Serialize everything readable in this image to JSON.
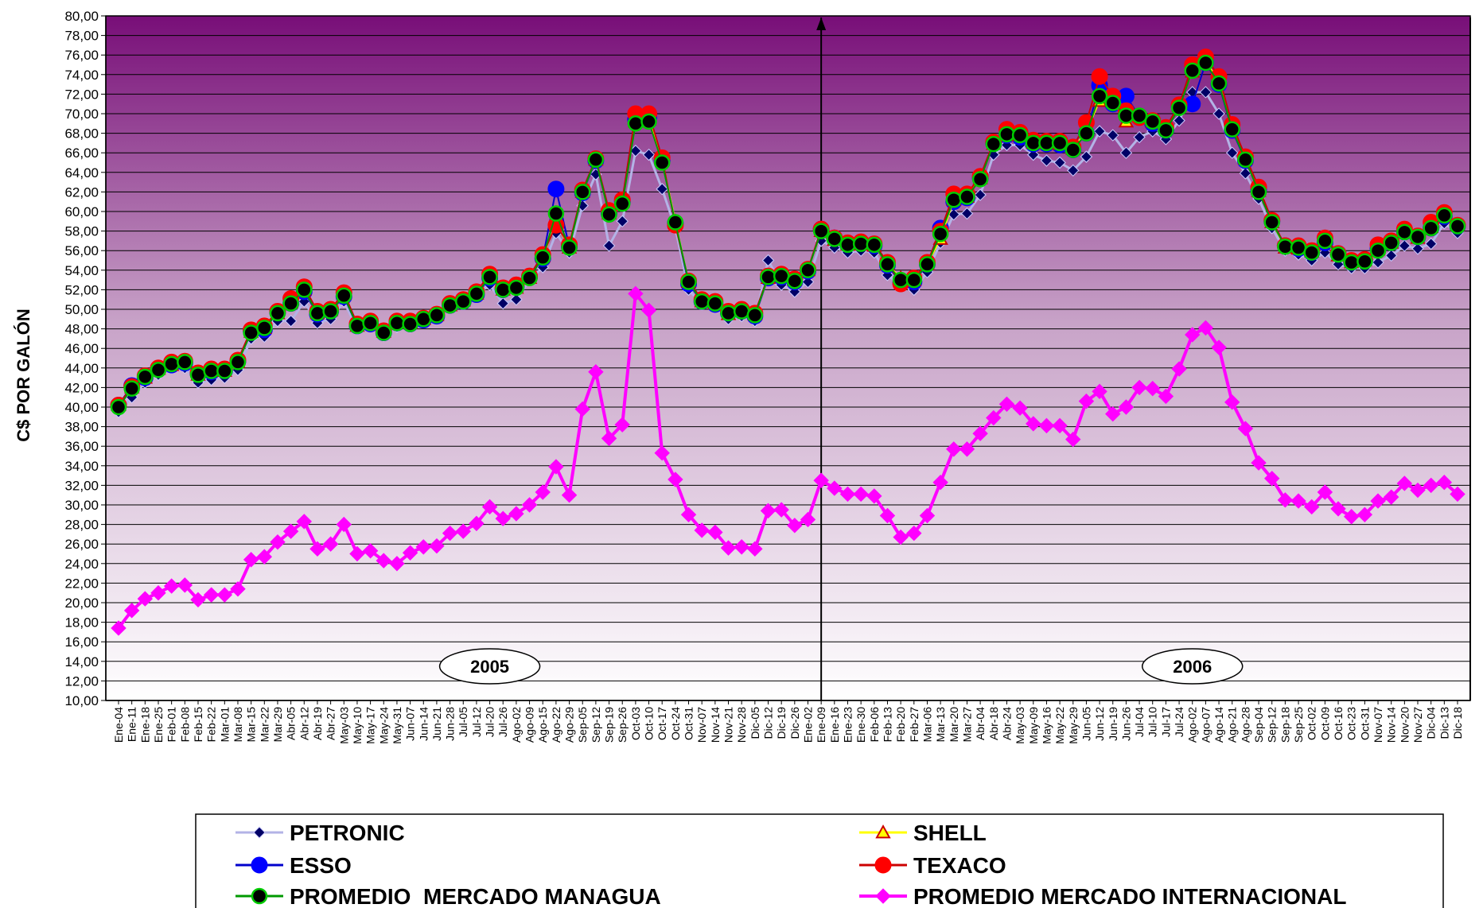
{
  "chart_data": {
    "type": "line",
    "title": "",
    "xlabel": "",
    "ylabel": "C$ POR GALÓN",
    "ylim": [
      10,
      80
    ],
    "ytick_step": 2,
    "grid": true,
    "legend_position": "bottom",
    "year_labels": [
      {
        "label": "2005",
        "at_index": 28
      },
      {
        "label": "2006",
        "at_index": 81
      }
    ],
    "year_divider_index": 53,
    "categories": [
      "Ene-04",
      "Ene-11",
      "Ene-18",
      "Ene-25",
      "Feb-01",
      "Feb-08",
      "Feb-15",
      "Feb-22",
      "Mar-01",
      "Mar-08",
      "Mar-15",
      "Mar-22",
      "Mar-29",
      "Abr-05",
      "Abr-12",
      "Abr-19",
      "Abr-27",
      "May-03",
      "May-10",
      "May-17",
      "May-24",
      "May-31",
      "Jun-07",
      "Jun-14",
      "Jun-21",
      "Jun-28",
      "Jul-05",
      "Jul-12",
      "Jul-20",
      "Jul-26",
      "Ago-02",
      "Ago-09",
      "Ago-15",
      "Ago-22",
      "Ago-29",
      "Sep-05",
      "Sep-12",
      "Sep-19",
      "Sep-26",
      "Oct-03",
      "Oct-10",
      "Oct-17",
      "Oct-24",
      "Oct-31",
      "Nov-07",
      "Nov-14",
      "Nov-21",
      "Nov-28",
      "Dic-05",
      "Dic-12",
      "Dic-19",
      "Dic-26",
      "Ene-02",
      "Ene-09",
      "Ene-16",
      "Ene-23",
      "Ene-30",
      "Feb-06",
      "Feb-13",
      "Feb-20",
      "Feb-27",
      "Mar-06",
      "Mar-13",
      "Mar-20",
      "Mar-27",
      "Abr-04",
      "Abr-18",
      "Abr-24",
      "May-03",
      "May-09",
      "May-16",
      "May-22",
      "May-29",
      "Jun-05",
      "Jun-12",
      "Jun-19",
      "Jun-26",
      "Jul-04",
      "Jul-10",
      "Jul-17",
      "Jul-24",
      "Ago-02",
      "Ago-07",
      "Ago-14",
      "Ago-21",
      "Ago-28",
      "Sep-04",
      "Sep-12",
      "Sep-18",
      "Sep-25",
      "Oct-02",
      "Oct-09",
      "Oct-16",
      "Oct-23",
      "Oct-31",
      "Nov-07",
      "Nov-14",
      "Nov-20",
      "Nov-27",
      "Dic-04",
      "Dic-13",
      "Dic-18"
    ],
    "series": [
      {
        "name": "PETRONIC",
        "color": "#B3B3E6",
        "marker_color": "#000066",
        "marker": "diamond",
        "values": [
          39.5,
          41.0,
          42.5,
          43.3,
          44.0,
          44.0,
          42.5,
          42.8,
          43.0,
          43.8,
          47.0,
          47.2,
          48.8,
          48.8,
          50.8,
          48.6,
          49.0,
          50.8,
          48.0,
          48.3,
          47.3,
          48.2,
          48.2,
          48.8,
          49.2,
          50.3,
          50.8,
          51.5,
          52.5,
          50.6,
          51.0,
          53.0,
          54.3,
          57.8,
          55.8,
          60.6,
          63.8,
          56.5,
          59.0,
          66.2,
          65.8,
          62.3,
          58.3,
          52.0,
          50.5,
          50.3,
          49.0,
          49.3,
          48.8,
          55.0,
          52.5,
          51.8,
          52.8,
          57.0,
          56.3,
          55.8,
          56.0,
          55.8,
          53.5,
          52.5,
          52.0,
          53.8,
          56.8,
          59.7,
          59.8,
          61.7,
          65.8,
          66.8,
          66.8,
          65.8,
          65.2,
          65.0,
          64.2,
          65.6,
          68.2,
          67.8,
          66.0,
          67.6,
          68.2,
          67.4,
          69.3,
          72.2,
          72.2,
          70.0,
          66.0,
          63.9,
          61.3,
          58.3,
          56.0,
          55.6,
          55.0,
          55.8,
          54.6,
          54.2,
          54.2,
          54.8,
          55.5,
          56.5,
          56.2,
          56.7,
          58.8,
          57.8
        ]
      },
      {
        "name": "ESSO",
        "color": "#0000CC",
        "marker_color": "#0000FF",
        "marker": "circle",
        "values": [
          40.2,
          42.2,
          43.0,
          43.9,
          44.3,
          44.5,
          43.4,
          43.6,
          43.7,
          44.7,
          47.8,
          47.9,
          49.7,
          50.6,
          51.8,
          49.5,
          49.8,
          51.3,
          48.3,
          48.5,
          47.6,
          48.6,
          48.5,
          48.9,
          49.3,
          50.4,
          50.8,
          51.5,
          53.2,
          52.0,
          52.3,
          53.3,
          55.2,
          62.3,
          56.4,
          61.9,
          65.2,
          59.8,
          61.0,
          69.4,
          69.6,
          65.2,
          58.8,
          52.6,
          50.8,
          50.5,
          49.6,
          49.8,
          49.3,
          53.2,
          53.3,
          52.8,
          53.9,
          58.2,
          57.3,
          56.6,
          56.8,
          56.5,
          54.5,
          52.7,
          52.8,
          54.6,
          58.3,
          61.0,
          61.4,
          63.4,
          67.0,
          67.8,
          67.6,
          66.9,
          66.9,
          66.8,
          66.3,
          68.0,
          72.9,
          71.0,
          71.8,
          69.7,
          69.0,
          68.3,
          70.8,
          71.0,
          75.2,
          73.0,
          68.3,
          65.2,
          62.2,
          59.0,
          56.5,
          56.2,
          55.8,
          56.8,
          55.7,
          54.8,
          55.0,
          56.2,
          56.8,
          57.9,
          57.4,
          58.3,
          59.5,
          58.5
        ]
      },
      {
        "name": "SHELL",
        "color": "#FFFF00",
        "marker_color": "#CC0000",
        "marker": "triangle",
        "values": [
          40.2,
          42.0,
          43.0,
          43.9,
          44.3,
          44.6,
          43.3,
          43.7,
          43.7,
          44.6,
          47.7,
          48.1,
          49.6,
          50.7,
          52.0,
          49.6,
          49.9,
          51.6,
          48.3,
          48.7,
          47.7,
          48.7,
          48.6,
          49.0,
          49.4,
          50.4,
          50.9,
          51.6,
          53.4,
          52.0,
          52.2,
          53.2,
          55.4,
          58.8,
          56.3,
          62.0,
          65.3,
          59.8,
          61.0,
          69.2,
          69.4,
          65.3,
          59.0,
          52.8,
          50.8,
          50.6,
          49.5,
          49.9,
          49.5,
          53.2,
          53.4,
          53.0,
          54.0,
          58.0,
          57.1,
          56.6,
          56.6,
          56.5,
          54.6,
          53.2,
          53.0,
          54.6,
          57.2,
          61.2,
          61.5,
          63.4,
          66.9,
          67.8,
          67.8,
          67.0,
          67.0,
          66.9,
          66.4,
          68.2,
          71.3,
          71.3,
          69.2,
          69.7,
          69.2,
          68.5,
          70.8,
          74.3,
          75.4,
          73.3,
          68.6,
          65.4,
          62.1,
          58.9,
          56.3,
          56.2,
          55.9,
          57.0,
          55.5,
          54.8,
          55.0,
          56.1,
          56.8,
          57.9,
          57.3,
          58.4,
          59.5,
          58.6
        ]
      },
      {
        "name": "TEXACO",
        "color": "#CC0000",
        "marker_color": "#FF0000",
        "marker": "circle",
        "values": [
          40.2,
          42.1,
          43.2,
          44.0,
          44.6,
          44.7,
          43.5,
          43.9,
          43.9,
          44.8,
          47.9,
          48.3,
          49.8,
          51.1,
          52.3,
          49.8,
          50.0,
          51.7,
          48.5,
          48.8,
          47.8,
          48.8,
          48.8,
          49.1,
          49.5,
          50.6,
          51.0,
          51.8,
          53.6,
          52.2,
          52.5,
          53.4,
          55.6,
          58.6,
          56.6,
          62.2,
          65.4,
          60.1,
          61.2,
          70.0,
          70.0,
          65.5,
          58.6,
          52.9,
          51.0,
          50.8,
          49.8,
          50.0,
          49.6,
          53.4,
          53.6,
          53.1,
          54.1,
          58.2,
          57.3,
          56.8,
          56.9,
          56.7,
          54.8,
          52.6,
          53.2,
          54.8,
          58.0,
          61.8,
          61.8,
          63.6,
          67.1,
          68.4,
          68.1,
          67.3,
          67.2,
          67.2,
          66.6,
          69.1,
          73.8,
          71.8,
          70.3,
          69.6,
          69.3,
          68.6,
          70.9,
          75.0,
          75.8,
          73.8,
          68.9,
          65.6,
          62.5,
          59.1,
          56.5,
          56.5,
          56.0,
          57.3,
          55.7,
          55.0,
          55.1,
          56.6,
          57.0,
          58.2,
          57.5,
          58.9,
          59.9,
          58.6
        ]
      },
      {
        "name": "PROMEDIO  MERCADO MANAGUA",
        "color": "#009900",
        "marker_color": "#000000",
        "marker_border": "#00CC00",
        "marker": "circle",
        "values": [
          40.0,
          41.9,
          43.1,
          43.8,
          44.4,
          44.6,
          43.3,
          43.7,
          43.7,
          44.6,
          47.6,
          48.1,
          49.6,
          50.6,
          52.0,
          49.6,
          49.8,
          51.4,
          48.3,
          48.6,
          47.6,
          48.6,
          48.5,
          49.0,
          49.4,
          50.4,
          50.8,
          51.6,
          53.3,
          52.0,
          52.2,
          53.2,
          55.3,
          59.8,
          56.3,
          62.0,
          65.3,
          59.7,
          60.8,
          69.0,
          69.2,
          65.0,
          58.9,
          52.8,
          50.8,
          50.6,
          49.6,
          49.8,
          49.4,
          53.3,
          53.4,
          52.9,
          54.0,
          58.0,
          57.2,
          56.6,
          56.7,
          56.6,
          54.6,
          53.0,
          53.0,
          54.6,
          57.7,
          61.2,
          61.5,
          63.3,
          66.9,
          67.9,
          67.8,
          67.0,
          67.0,
          67.0,
          66.3,
          68.0,
          71.8,
          71.1,
          69.8,
          69.8,
          69.2,
          68.3,
          70.6,
          74.4,
          75.2,
          73.1,
          68.4,
          65.3,
          62.0,
          58.9,
          56.4,
          56.3,
          55.8,
          57.0,
          55.6,
          54.8,
          54.9,
          56.0,
          56.8,
          57.9,
          57.4,
          58.3,
          59.6,
          58.5
        ]
      },
      {
        "name": "PROMEDIO MERCADO INTERNACIONAL",
        "color": "#FF00FF",
        "marker_color": "#FF00FF",
        "marker": "diamond",
        "values": [
          17.4,
          19.2,
          20.4,
          21.0,
          21.7,
          21.8,
          20.3,
          20.8,
          20.8,
          21.4,
          24.4,
          24.7,
          26.2,
          27.3,
          28.3,
          25.5,
          26.0,
          28.0,
          25.0,
          25.3,
          24.3,
          24.0,
          25.1,
          25.7,
          25.8,
          27.1,
          27.3,
          28.1,
          29.8,
          28.6,
          29.1,
          30.0,
          31.3,
          33.9,
          31.0,
          39.8,
          43.6,
          36.8,
          38.2,
          51.6,
          49.9,
          35.3,
          32.6,
          29.0,
          27.4,
          27.2,
          25.6,
          25.7,
          25.5,
          29.4,
          29.5,
          27.9,
          28.5,
          32.5,
          31.7,
          31.1,
          31.1,
          30.9,
          28.9,
          26.7,
          27.1,
          28.9,
          32.3,
          35.7,
          35.7,
          37.3,
          38.9,
          40.3,
          39.9,
          38.3,
          38.1,
          38.1,
          36.7,
          40.6,
          41.6,
          39.3,
          40.0,
          42.0,
          41.9,
          41.1,
          43.9,
          47.4,
          48.1,
          46.1,
          40.5,
          37.8,
          34.3,
          32.7,
          30.5,
          30.4,
          29.8,
          31.3,
          29.6,
          28.8,
          29.0,
          30.4,
          30.8,
          32.2,
          31.5,
          32.0,
          32.3,
          31.1
        ]
      }
    ]
  }
}
